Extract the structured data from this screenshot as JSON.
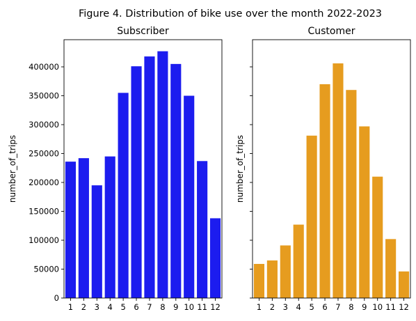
{
  "suptitle": "Figure 4. Distribution of bike use over the month 2022-2023",
  "chart_data": [
    {
      "type": "bar",
      "title": "Subscriber",
      "xlabel": "",
      "ylabel": "number_of_trips",
      "color": "#1c1cef",
      "categories": [
        "1",
        "2",
        "3",
        "4",
        "5",
        "6",
        "7",
        "8",
        "9",
        "10",
        "11",
        "12"
      ],
      "values": [
        236000,
        242000,
        195000,
        245000,
        355000,
        401000,
        418000,
        427000,
        405000,
        350000,
        237000,
        138000
      ],
      "ylim": [
        0,
        447000
      ],
      "yticks": [
        0,
        50000,
        100000,
        150000,
        200000,
        250000,
        300000,
        350000,
        400000
      ],
      "ytick_labels": [
        "0",
        "50000",
        "100000",
        "150000",
        "200000",
        "250000",
        "300000",
        "350000",
        "400000"
      ],
      "grid": false
    },
    {
      "type": "bar",
      "title": "Customer",
      "xlabel": "",
      "ylabel": "number_of_trips",
      "color": "#e69c1f",
      "categories": [
        "1",
        "2",
        "3",
        "4",
        "5",
        "6",
        "7",
        "8",
        "9",
        "10",
        "11",
        "12"
      ],
      "values": [
        59000,
        65000,
        91000,
        127000,
        281000,
        370000,
        406000,
        360000,
        297000,
        210000,
        102000,
        46000
      ],
      "ylim": [
        0,
        447000
      ],
      "yticks": [
        0,
        50000,
        100000,
        150000,
        200000,
        250000,
        300000,
        350000,
        400000
      ],
      "ytick_labels": [
        "",
        "",
        "",
        "",
        "",
        "",
        "",
        "",
        ""
      ],
      "grid": false
    }
  ]
}
